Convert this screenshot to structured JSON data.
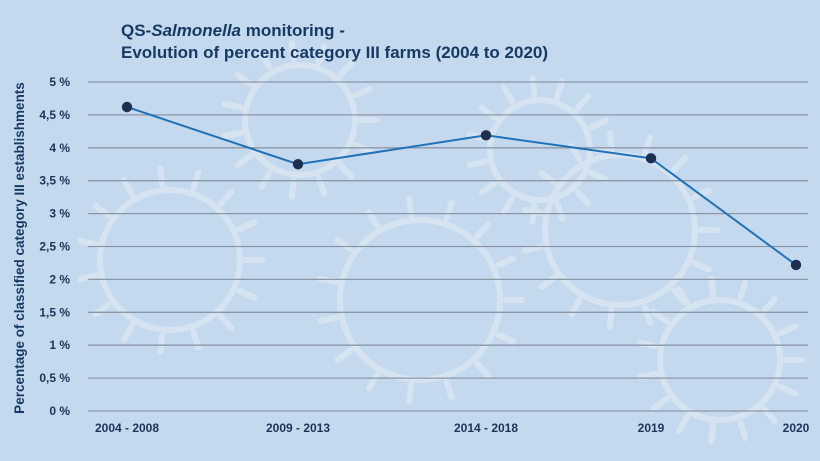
{
  "chart_data": {
    "type": "line",
    "title_prefix": "QS-",
    "title_italic": "Salmonella",
    "title_suffix": " monitoring -",
    "subtitle": "Evolution of percent category III farms (2004 to 2020)",
    "xlabel": "",
    "ylabel": "Percentage of classified category III establishments",
    "ylim": [
      0,
      5
    ],
    "yticks": [
      0,
      0.5,
      1,
      1.5,
      2,
      2.5,
      3,
      3.5,
      4,
      4.5,
      5
    ],
    "ytick_labels": [
      "0 %",
      "0,5 %",
      "1 %",
      "1,5 %",
      "2 %",
      "2,5 %",
      "3 %",
      "3,5 %",
      "4 %",
      "4,5 %",
      "5 %"
    ],
    "categories": [
      "2004 - 2008",
      "2009 - 2013",
      "2014 - 2018",
      "2019",
      "2020"
    ],
    "values": [
      4.62,
      3.75,
      4.19,
      3.84,
      2.22
    ],
    "grid": true,
    "colors": {
      "line": "#1f72b8",
      "marker": "#1e2f4f",
      "grid": "#8c97a6",
      "background": "#c5d9ee",
      "text": "#163a63"
    }
  }
}
